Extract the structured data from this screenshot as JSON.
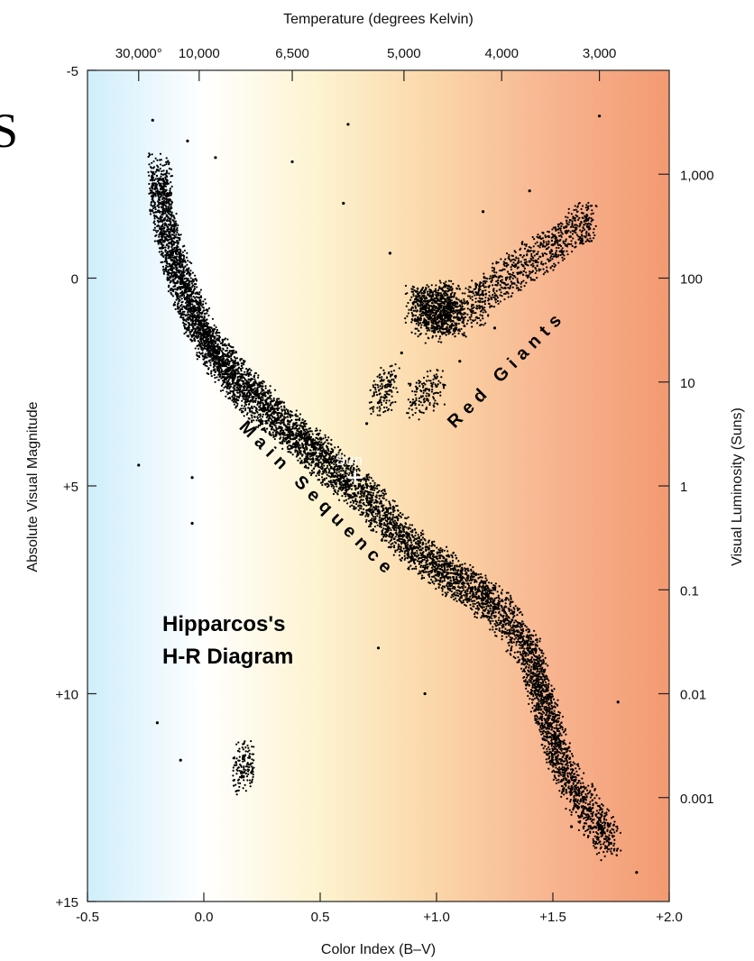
{
  "corner_glyph": "S",
  "chart_data": {
    "type": "scatter",
    "title": "Hipparcos's H-R Diagram",
    "title_lines": [
      "Hipparcos's",
      "H-R Diagram"
    ],
    "xlabel": "Color Index (B–V)",
    "ylabel": "Absolute Visual Magnitude",
    "x2label": "Temperature (degrees Kelvin)",
    "y2label": "Visual  Luminosity (Suns)",
    "xlim": [
      -0.5,
      2.0
    ],
    "ylim": [
      -5,
      15
    ],
    "y_inverted": true,
    "x_ticks": [
      {
        "value": -0.5,
        "label": "-0.5"
      },
      {
        "value": 0.0,
        "label": "0.0"
      },
      {
        "value": 0.5,
        "label": "0.5"
      },
      {
        "value": 1.0,
        "label": "+1.0"
      },
      {
        "value": 1.5,
        "label": "+1.5"
      },
      {
        "value": 2.0,
        "label": "+2.0"
      }
    ],
    "y_ticks": [
      {
        "value": -5,
        "label": "-5"
      },
      {
        "value": 0,
        "label": "0"
      },
      {
        "value": 5,
        "label": "+5"
      },
      {
        "value": 10,
        "label": "+10"
      },
      {
        "value": 15,
        "label": "+15"
      }
    ],
    "temperature_ticks": [
      {
        "bv": -0.28,
        "label": "30,000°"
      },
      {
        "bv": -0.02,
        "label": "10,000"
      },
      {
        "bv": 0.38,
        "label": "6,500"
      },
      {
        "bv": 0.86,
        "label": "5,000"
      },
      {
        "bv": 1.28,
        "label": "4,000"
      },
      {
        "bv": 1.7,
        "label": "3,000"
      }
    ],
    "luminosity_ticks": [
      {
        "mag": -2.5,
        "label": "1,000"
      },
      {
        "mag": 0.0,
        "label": "100"
      },
      {
        "mag": 2.5,
        "label": "10"
      },
      {
        "mag": 5.0,
        "label": "1"
      },
      {
        "mag": 7.5,
        "label": "0.1"
      },
      {
        "mag": 10.0,
        "label": "0.01"
      },
      {
        "mag": 12.5,
        "label": "0.001"
      }
    ],
    "annotations": [
      {
        "text": "Main Sequence",
        "at": [
          0.55,
          5.2
        ]
      },
      {
        "text": "Red Giants",
        "at": [
          1.28,
          2.5
        ]
      },
      {
        "text": "Sun",
        "at": [
          0.65,
          4.8
        ]
      }
    ],
    "sun": {
      "bv": 0.65,
      "mag": 4.8,
      "marker": "+"
    },
    "background_gradient": [
      "#cfeefb",
      "#ffffff",
      "#fdf3cf",
      "#fbd6a8",
      "#f7b48f",
      "#f39a72"
    ],
    "series": [
      {
        "points": [
          [
            -0.22,
            -3.8
          ],
          [
            -0.2,
            -2.6
          ],
          [
            -0.18,
            -2.2
          ],
          [
            -0.19,
            -1.8
          ],
          [
            -0.17,
            -1.4
          ],
          [
            -0.15,
            -1.0
          ],
          [
            -0.14,
            -0.6
          ],
          [
            -0.12,
            -0.3
          ],
          [
            -0.1,
            0.0
          ],
          [
            -0.08,
            0.3
          ],
          [
            -0.06,
            0.6
          ],
          [
            -0.04,
            0.9
          ],
          [
            -0.02,
            1.1
          ],
          [
            0.0,
            1.4
          ],
          [
            0.02,
            1.6
          ],
          [
            0.05,
            1.8
          ],
          [
            0.08,
            2.0
          ],
          [
            0.1,
            2.2
          ],
          [
            0.13,
            2.4
          ],
          [
            0.16,
            2.6
          ],
          [
            0.2,
            2.8
          ],
          [
            0.24,
            3.0
          ],
          [
            0.28,
            3.2
          ],
          [
            0.32,
            3.4
          ],
          [
            0.36,
            3.6
          ],
          [
            0.4,
            3.8
          ],
          [
            0.44,
            4.0
          ],
          [
            0.48,
            4.2
          ],
          [
            0.52,
            4.4
          ],
          [
            0.56,
            4.6
          ],
          [
            0.6,
            4.8
          ],
          [
            0.65,
            5.0
          ],
          [
            0.7,
            5.3
          ],
          [
            0.75,
            5.6
          ],
          [
            0.8,
            5.9
          ],
          [
            0.85,
            6.2
          ],
          [
            0.9,
            6.5
          ],
          [
            0.95,
            6.7
          ],
          [
            1.0,
            6.9
          ],
          [
            1.05,
            7.1
          ],
          [
            1.1,
            7.3
          ],
          [
            1.15,
            7.5
          ],
          [
            1.2,
            7.7
          ],
          [
            1.25,
            7.9
          ],
          [
            1.3,
            8.2
          ],
          [
            1.35,
            8.6
          ],
          [
            1.4,
            9.0
          ],
          [
            1.42,
            9.4
          ],
          [
            1.44,
            9.8
          ],
          [
            1.46,
            10.2
          ],
          [
            1.48,
            10.6
          ],
          [
            1.5,
            11.0
          ],
          [
            1.52,
            11.4
          ],
          [
            1.55,
            11.9
          ],
          [
            1.6,
            12.4
          ],
          [
            1.65,
            12.8
          ],
          [
            1.7,
            13.2
          ],
          [
            1.75,
            13.6
          ],
          [
            1.86,
            14.3
          ],
          [
            0.9,
            0.6
          ],
          [
            0.95,
            0.7
          ],
          [
            1.0,
            0.8
          ],
          [
            1.05,
            0.9
          ],
          [
            1.1,
            1.0
          ],
          [
            0.92,
            1.0
          ],
          [
            1.02,
            0.5
          ],
          [
            1.08,
            0.6
          ],
          [
            0.98,
            1.2
          ],
          [
            1.15,
            0.8
          ],
          [
            1.2,
            0.4
          ],
          [
            1.3,
            0.0
          ],
          [
            1.4,
            -0.4
          ],
          [
            1.5,
            -0.8
          ],
          [
            1.6,
            -1.2
          ],
          [
            1.65,
            -1.4
          ],
          [
            0.8,
            2.5
          ],
          [
            0.75,
            3.0
          ],
          [
            0.85,
            1.8
          ],
          [
            0.9,
            3.0
          ],
          [
            1.0,
            2.6
          ],
          [
            0.7,
            3.5
          ],
          [
            1.1,
            2.0
          ],
          [
            1.25,
            1.2
          ],
          [
            -0.28,
            4.5
          ],
          [
            -0.05,
            4.8
          ],
          [
            -0.05,
            5.9
          ],
          [
            -0.1,
            11.6
          ],
          [
            0.17,
            11.5
          ],
          [
            0.17,
            12.0
          ],
          [
            -0.2,
            10.7
          ],
          [
            0.75,
            8.9
          ],
          [
            0.95,
            10.0
          ],
          [
            1.78,
            10.2
          ],
          [
            1.58,
            13.2
          ],
          [
            1.74,
            13.5
          ],
          [
            0.38,
            -2.8
          ],
          [
            0.62,
            -3.7
          ],
          [
            1.7,
            -3.9
          ],
          [
            0.05,
            -2.9
          ],
          [
            -0.07,
            -3.3
          ],
          [
            0.8,
            -0.6
          ],
          [
            0.6,
            -1.8
          ],
          [
            1.4,
            -2.1
          ],
          [
            1.2,
            -1.6
          ]
        ]
      }
    ]
  }
}
